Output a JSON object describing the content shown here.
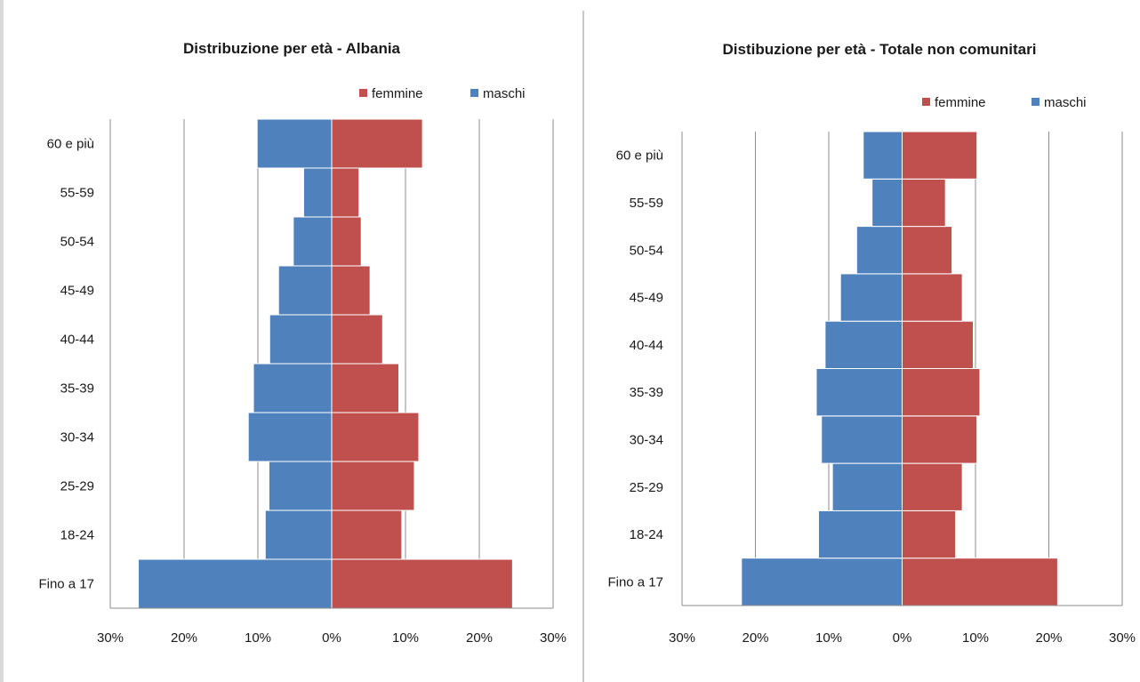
{
  "colors": {
    "femmine": "#c0504d",
    "maschi": "#4f81bd",
    "gridline": "#8c8c8c",
    "axis": "#8c8c8c",
    "text": "#1a1a1a"
  },
  "chart_data": [
    {
      "type": "bar",
      "orientation": "horizontal",
      "layout": "population-pyramid",
      "title": "Distribuzione per età - Albania",
      "legend_position": "top-right",
      "grid": true,
      "categories": [
        "Fino a 17",
        "18-24",
        "25-29",
        "30-34",
        "35-39",
        "40-44",
        "45-49",
        "50-54",
        "55-59",
        "60 e più"
      ],
      "series": [
        {
          "name": "femmine",
          "side": "right",
          "values": [
            24.5,
            9.5,
            11.2,
            11.8,
            9.1,
            6.9,
            5.2,
            4.0,
            3.7,
            12.3
          ]
        },
        {
          "name": "maschi",
          "side": "left",
          "values": [
            26.2,
            9.0,
            8.5,
            11.3,
            10.6,
            8.4,
            7.2,
            5.2,
            3.8,
            10.1
          ]
        }
      ],
      "xlim": [
        -30,
        30
      ],
      "xticks": [
        -30,
        -20,
        -10,
        0,
        10,
        20,
        30
      ],
      "xtick_labels": [
        "30%",
        "20%",
        "10%",
        "0%",
        "10%",
        "20%",
        "30%"
      ]
    },
    {
      "type": "bar",
      "orientation": "horizontal",
      "layout": "population-pyramid",
      "title": "Distibuzione per età - Totale non comunitari",
      "legend_position": "top-right",
      "grid": true,
      "categories": [
        "Fino a 17",
        "18-24",
        "25-29",
        "30-34",
        "35-39",
        "40-44",
        "45-49",
        "50-54",
        "55-59",
        "60 e più"
      ],
      "series": [
        {
          "name": "femmine",
          "side": "right",
          "values": [
            21.2,
            7.3,
            8.2,
            10.2,
            10.6,
            9.7,
            8.2,
            6.8,
            5.9,
            10.2
          ]
        },
        {
          "name": "maschi",
          "side": "left",
          "values": [
            21.9,
            11.4,
            9.5,
            11.0,
            11.7,
            10.5,
            8.4,
            6.2,
            4.1,
            5.3
          ]
        }
      ],
      "xlim": [
        -30,
        30
      ],
      "xticks": [
        -30,
        -20,
        -10,
        0,
        10,
        20,
        30
      ],
      "xtick_labels": [
        "30%",
        "20%",
        "10%",
        "0%",
        "10%",
        "20%",
        "30%"
      ]
    }
  ]
}
